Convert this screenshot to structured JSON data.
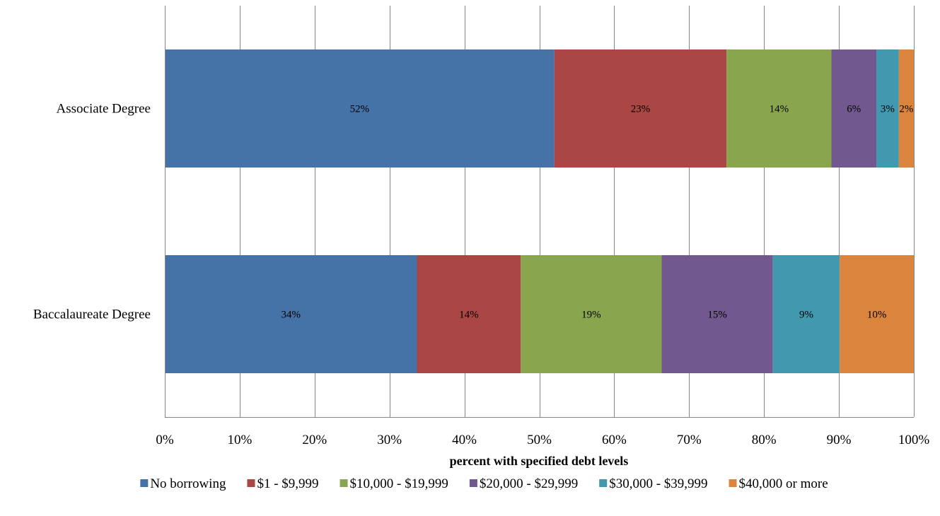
{
  "chart_data": {
    "type": "bar",
    "orientation": "horizontal",
    "stacked": "100%",
    "title": "",
    "xlabel": "percent with specified debt levels",
    "ylabel": "",
    "xlim": [
      0,
      100
    ],
    "x_ticks": [
      "0%",
      "10%",
      "20%",
      "30%",
      "40%",
      "50%",
      "60%",
      "70%",
      "80%",
      "90%",
      "100%"
    ],
    "grid": true,
    "legend_position": "bottom",
    "categories": [
      "Associate Degree",
      "Baccalaureate Degree"
    ],
    "series": [
      {
        "name": "No borrowing",
        "color": "#4572A7",
        "values": [
          52,
          34
        ],
        "labels": [
          "52%",
          "34%"
        ]
      },
      {
        "name": "$1 - $9,999",
        "color": "#AA4643",
        "values": [
          23,
          14
        ],
        "labels": [
          "23%",
          "14%"
        ]
      },
      {
        "name": "$10,000 - $19,999",
        "color": "#89A54E",
        "values": [
          14,
          19
        ],
        "labels": [
          "14%",
          "19%"
        ]
      },
      {
        "name": "$20,000 - $29,999",
        "color": "#71588F",
        "values": [
          6,
          15
        ],
        "labels": [
          "6%",
          "15%"
        ]
      },
      {
        "name": "$30,000 - $39,999",
        "color": "#4198AF",
        "values": [
          3,
          9
        ],
        "labels": [
          "3%",
          "9%"
        ]
      },
      {
        "name": "$40,000 or more",
        "color": "#DB843D",
        "values": [
          2,
          10
        ],
        "labels": [
          "2%",
          "10%"
        ]
      }
    ]
  }
}
